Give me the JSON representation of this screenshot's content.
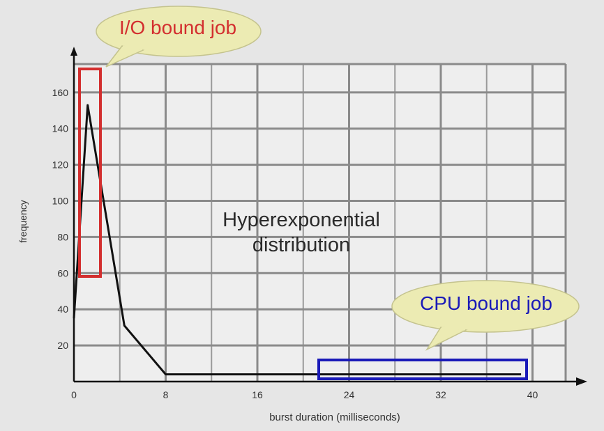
{
  "chart_data": {
    "type": "line",
    "xlabel": "burst duration (milliseconds)",
    "ylabel": "frequency",
    "x_ticks": [
      0,
      8,
      16,
      24,
      32,
      40
    ],
    "y_ticks": [
      20,
      40,
      60,
      80,
      100,
      120,
      140,
      160
    ],
    "xlim": [
      0,
      42
    ],
    "ylim": [
      0,
      175
    ],
    "grid": true,
    "series": [
      {
        "x": [
          0,
          1.2,
          4.4,
          8,
          16,
          24,
          32,
          39
        ],
        "y": [
          35,
          153,
          31,
          4,
          4,
          4,
          4,
          4
        ]
      }
    ],
    "annotations": {
      "center": [
        "Hyperexponential",
        "distribution"
      ],
      "io_callout": "I/O bound job",
      "cpu_callout": "CPU bound job"
    },
    "highlight_colors": {
      "io": "#d32f2f",
      "cpu": "#1a1ab8"
    }
  }
}
